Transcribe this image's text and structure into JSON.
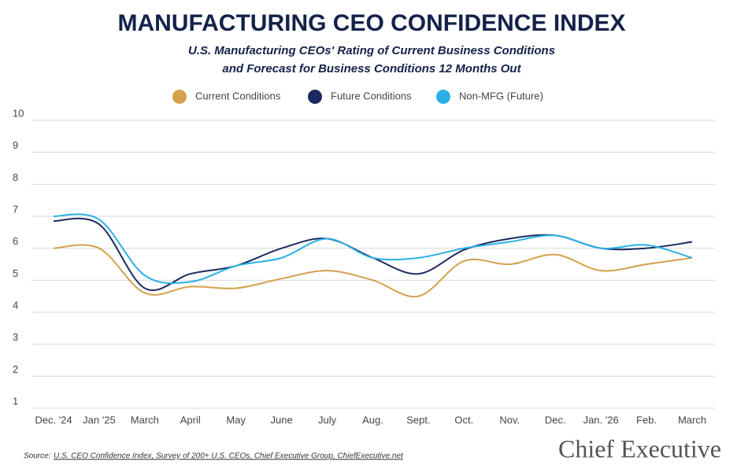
{
  "chart_data": {
    "type": "line",
    "title": "MANUFACTURING CEO CONFIDENCE INDEX",
    "subtitle": [
      "U.S. Manufacturing CEOs' Rating of Current Business Conditions",
      "and Forecast for Business Conditions 12 Months Out"
    ],
    "categories": [
      "Dec. '24",
      "Jan '25",
      "March",
      "April",
      "May",
      "June",
      "July",
      "Aug.",
      "Sept.",
      "Oct.",
      "Nov.",
      "Dec.",
      "Jan. '26",
      "Feb.",
      "March"
    ],
    "series": [
      {
        "name": "Current Conditions",
        "color": "#d4a04c",
        "values": [
          6.0,
          6.0,
          4.6,
          4.8,
          4.75,
          5.05,
          5.3,
          5.0,
          4.5,
          5.6,
          5.5,
          5.8,
          5.3,
          5.5,
          5.7
        ]
      },
      {
        "name": "Future Conditions",
        "color": "#1b2a5e",
        "values": [
          6.85,
          6.75,
          4.75,
          5.2,
          5.45,
          6.0,
          6.3,
          5.7,
          5.2,
          5.95,
          6.3,
          6.4,
          6.0,
          6.0,
          6.2
        ]
      },
      {
        "name": "Non-MFG (Future)",
        "color": "#29b0e6",
        "values": [
          7.0,
          6.9,
          5.15,
          4.95,
          5.45,
          5.7,
          6.3,
          5.7,
          5.7,
          6.0,
          6.2,
          6.4,
          6.0,
          6.1,
          5.7
        ]
      }
    ],
    "ylim": [
      1,
      10
    ],
    "yticks": [
      1,
      2,
      3,
      4,
      5,
      6,
      7,
      8,
      9,
      10
    ],
    "grid": true,
    "source_label": "Source:",
    "source": "U.S. CEO Confidence Index, Survey of 200+ U.S. CEOs, Chief Executive Group, ChiefExecutive.net",
    "logo": "Chief Executive"
  }
}
